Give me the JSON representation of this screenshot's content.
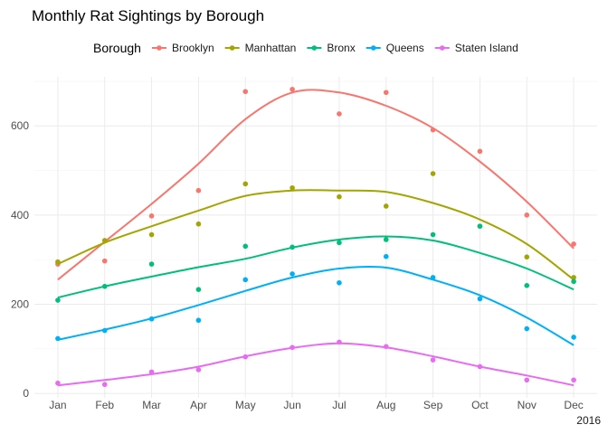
{
  "chart_data": {
    "type": "line",
    "title": "Monthly Rat Sightings by Borough",
    "caption": "2016",
    "legend": {
      "title": "Borough",
      "position": "top"
    },
    "x": [
      "Jan",
      "Feb",
      "Mar",
      "Apr",
      "May",
      "Jun",
      "Jul",
      "Aug",
      "Sep",
      "Oct",
      "Nov",
      "Dec"
    ],
    "yticks": [
      0,
      200,
      400,
      600
    ],
    "ylim": [
      -10,
      710
    ],
    "grid": true,
    "series": [
      {
        "name": "Brooklyn",
        "color": "#F8766D",
        "points": [
          290,
          297,
          398,
          455,
          677,
          682,
          627,
          675,
          591,
          543,
          400,
          335
        ],
        "smooth": [
          255,
          340,
          425,
          515,
          615,
          675,
          675,
          645,
          595,
          520,
          430,
          325
        ]
      },
      {
        "name": "Manhattan",
        "color": "#A3A500",
        "points": [
          295,
          343,
          356,
          380,
          470,
          461,
          441,
          420,
          493,
          375,
          306,
          260
        ],
        "smooth": [
          290,
          338,
          375,
          410,
          443,
          455,
          455,
          452,
          427,
          390,
          335,
          255
        ]
      },
      {
        "name": "Bronx",
        "color": "#00BF7D",
        "points": [
          209,
          240,
          290,
          233,
          330,
          328,
          338,
          345,
          356,
          375,
          242,
          251
        ],
        "smooth": [
          215,
          240,
          262,
          283,
          302,
          327,
          345,
          352,
          343,
          315,
          280,
          233
        ]
      },
      {
        "name": "Queens",
        "color": "#00B0F6",
        "points": [
          123,
          141,
          167,
          164,
          255,
          268,
          248,
          307,
          260,
          212,
          145,
          126
        ],
        "smooth": [
          120,
          143,
          168,
          198,
          230,
          260,
          280,
          282,
          255,
          220,
          170,
          108
        ]
      },
      {
        "name": "Staten Island",
        "color": "#E76BF3",
        "points": [
          23,
          20,
          48,
          53,
          82,
          103,
          115,
          105,
          75,
          60,
          30,
          30
        ],
        "smooth": [
          18,
          30,
          43,
          60,
          83,
          102,
          112,
          103,
          83,
          60,
          40,
          18
        ]
      }
    ]
  }
}
